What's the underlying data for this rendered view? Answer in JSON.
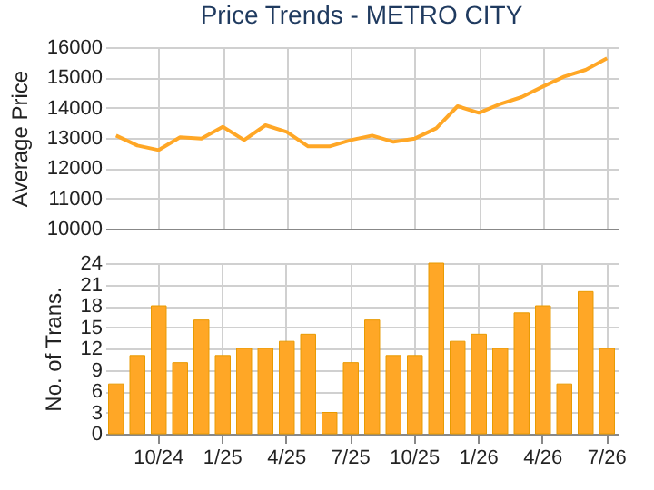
{
  "chart_data": [
    {
      "type": "line",
      "title": "Price Trends - METRO CITY",
      "ylabel": "Average Price",
      "categories": [
        null,
        null,
        null,
        null,
        null,
        null,
        null,
        null,
        null,
        null,
        null,
        null,
        null,
        null,
        null,
        null,
        null,
        null,
        null,
        null,
        null,
        null,
        null,
        null
      ],
      "series": [
        {
          "color": "#ffa726",
          "values": [
            13080,
            12750,
            12600,
            13020,
            12980,
            13370,
            12930,
            13420,
            13200,
            12720,
            12720,
            12930,
            13080,
            12870,
            12980,
            13320,
            14050,
            13830,
            14120,
            14350,
            14700,
            15030,
            15250,
            15630
          ]
        }
      ],
      "ylim": [
        10000,
        16000
      ],
      "yticks": [
        10000,
        11000,
        12000,
        13000,
        14000,
        15000,
        16000
      ],
      "grid": true,
      "tick_labels": "y"
    },
    {
      "type": "bar",
      "ylabel": "No. of Trans.",
      "categories": [
        null,
        null,
        "10/24",
        null,
        null,
        "1/25",
        null,
        null,
        "4/25",
        null,
        null,
        "7/25",
        null,
        null,
        "10/25",
        null,
        null,
        "1/26",
        null,
        null,
        "4/26",
        null,
        null,
        "7/26"
      ],
      "series": [
        {
          "color": "#f8b62b",
          "values": [
            7,
            11,
            18,
            10,
            16,
            11,
            12,
            12,
            13,
            14,
            3,
            10,
            16,
            11,
            11,
            24,
            13,
            14,
            12,
            17,
            18,
            7,
            20,
            12
          ]
        }
      ],
      "ylim": [
        0,
        24
      ],
      "yticks": [
        0,
        3,
        6,
        9,
        12,
        15,
        18,
        21,
        24
      ],
      "grid": true
    }
  ]
}
